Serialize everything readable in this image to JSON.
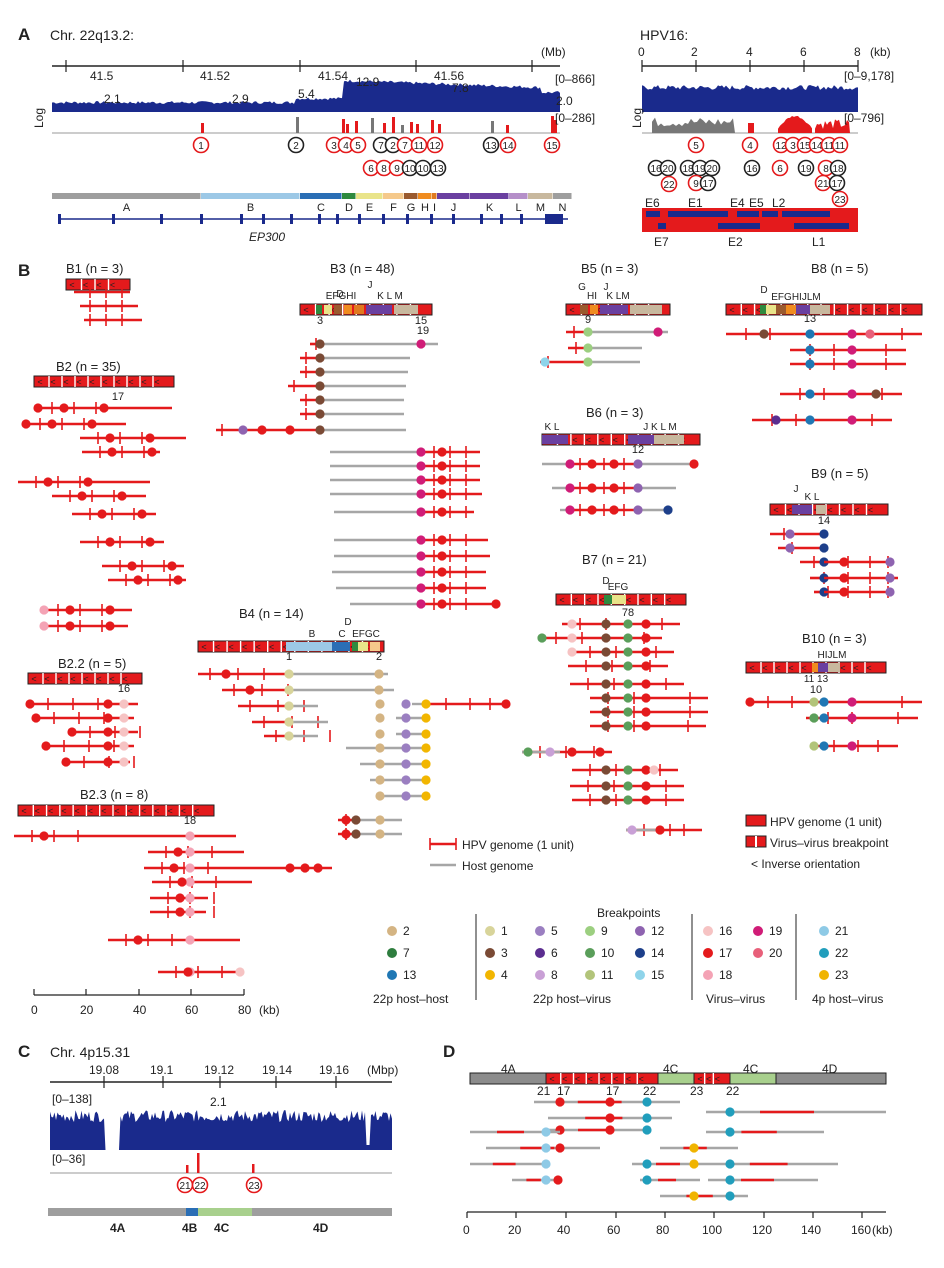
{
  "panels": {
    "A": {
      "letter": "A",
      "chr_title": "Chr. 22q13.2:",
      "chr_unit": "(Mb)",
      "chr_ticks": [
        "41.5",
        "41.52",
        "41.54",
        "41.56"
      ],
      "chr_range_cov": "[0–866]",
      "chr_range_bp": "[0–286]",
      "log_label": "Log",
      "coverage_labels": [
        "2.1",
        "2.9",
        "5.4",
        "12.9",
        "7.8",
        "2.0"
      ],
      "segments": [
        "A",
        "B",
        "C",
        "D",
        "E",
        "F",
        "G",
        "H",
        "I",
        "J",
        "K",
        "L",
        "M",
        "N"
      ],
      "gene": "EP300",
      "hpv_title": "HPV16:",
      "hpv_unit": "(kb)",
      "hpv_ticks": [
        "0",
        "2",
        "4",
        "6",
        "8"
      ],
      "hpv_range_cov": "[0–9,178]",
      "hpv_range_bp": "[0–796]",
      "hpv_genes_top": [
        "E6",
        "E1",
        "E4",
        "E5",
        "L2"
      ],
      "hpv_genes_bottom": [
        "E7",
        "E2",
        "L1"
      ]
    },
    "B": {
      "letter": "B",
      "groups": [
        "B1 (n = 3)",
        "B2 (n = 35)",
        "B2.2 (n = 5)",
        "B2.3 (n = 8)",
        "B3 (n = 48)",
        "B4 (n = 14)",
        "B5 (n = 3)",
        "B6 (n = 3)",
        "B7 (n = 21)",
        "B8 (n = 5)",
        "B9 (n = 5)",
        "B10 (n = 3)"
      ],
      "x_ticks": [
        "0",
        "20",
        "40",
        "60",
        "80"
      ],
      "x_unit": "(kb)",
      "legend": {
        "hpv_unit": "HPV genome (1 unit)",
        "host": "Host genome",
        "hpv_box": "HPV genome (1 unit)",
        "virus_break": "Virus–virus breakpoint",
        "inverse": "< Inverse orientation"
      },
      "breakpoints_title": "Breakpoints",
      "breakpoint_groups": [
        {
          "label": "22p host–host",
          "items": [
            {
              "id": "2",
              "color": "#d4b483"
            },
            {
              "id": "7",
              "color": "#2e7d3e"
            },
            {
              "id": "13",
              "color": "#1f77b4"
            }
          ]
        },
        {
          "label": "22p host–virus",
          "items": [
            {
              "id": "1",
              "color": "#d8d49a"
            },
            {
              "id": "3",
              "color": "#7a4a35"
            },
            {
              "id": "4",
              "color": "#f2b600"
            },
            {
              "id": "5",
              "color": "#9b7fc1"
            },
            {
              "id": "6",
              "color": "#5b2d90"
            },
            {
              "id": "8",
              "color": "#c9a0d6"
            },
            {
              "id": "9",
              "color": "#9ccf80"
            },
            {
              "id": "10",
              "color": "#5a9e5a"
            },
            {
              "id": "11",
              "color": "#b2c47a"
            },
            {
              "id": "12",
              "color": "#8e63b0"
            },
            {
              "id": "14",
              "color": "#1d3f8a"
            },
            {
              "id": "15",
              "color": "#8fd4ea"
            }
          ]
        },
        {
          "label": "Virus–virus",
          "items": [
            {
              "id": "16",
              "color": "#f6c3c3"
            },
            {
              "id": "17",
              "color": "#e41a1c"
            },
            {
              "id": "18",
              "color": "#f4a3b5"
            },
            {
              "id": "19",
              "color": "#d01c77"
            },
            {
              "id": "20",
              "color": "#e8607a"
            }
          ]
        },
        {
          "label": "4p host–virus",
          "items": [
            {
              "id": "21",
              "color": "#8ecae6"
            },
            {
              "id": "22",
              "color": "#219ebc"
            },
            {
              "id": "23",
              "color": "#f0b400"
            }
          ]
        }
      ]
    },
    "C": {
      "letter": "C",
      "title": "Chr. 4p15.31",
      "unit": "(Mbp)",
      "ticks": [
        "19.08",
        "19.1",
        "19.12",
        "19.14",
        "19.16"
      ],
      "range_cov": "[0–138]",
      "range_bp": "[0–36]",
      "cov_label": "2.1",
      "breakpoints": [
        "21",
        "22",
        "23"
      ],
      "segments": [
        "4A",
        "4B",
        "4C",
        "4D"
      ]
    },
    "D": {
      "letter": "D",
      "segments": [
        "4A",
        "4C",
        "4C",
        "4D"
      ],
      "bp_labels": [
        "21",
        "17",
        "17",
        "22",
        "23",
        "22"
      ],
      "x_ticks": [
        "0",
        "20",
        "40",
        "60",
        "80",
        "100",
        "120",
        "140",
        "160"
      ],
      "x_unit": "(kb)"
    }
  },
  "colors": {
    "coverage": "#1a2a8c",
    "hpv_red": "#e41a1c",
    "host_grey": "#a6a6a6",
    "frame": "#222222"
  }
}
